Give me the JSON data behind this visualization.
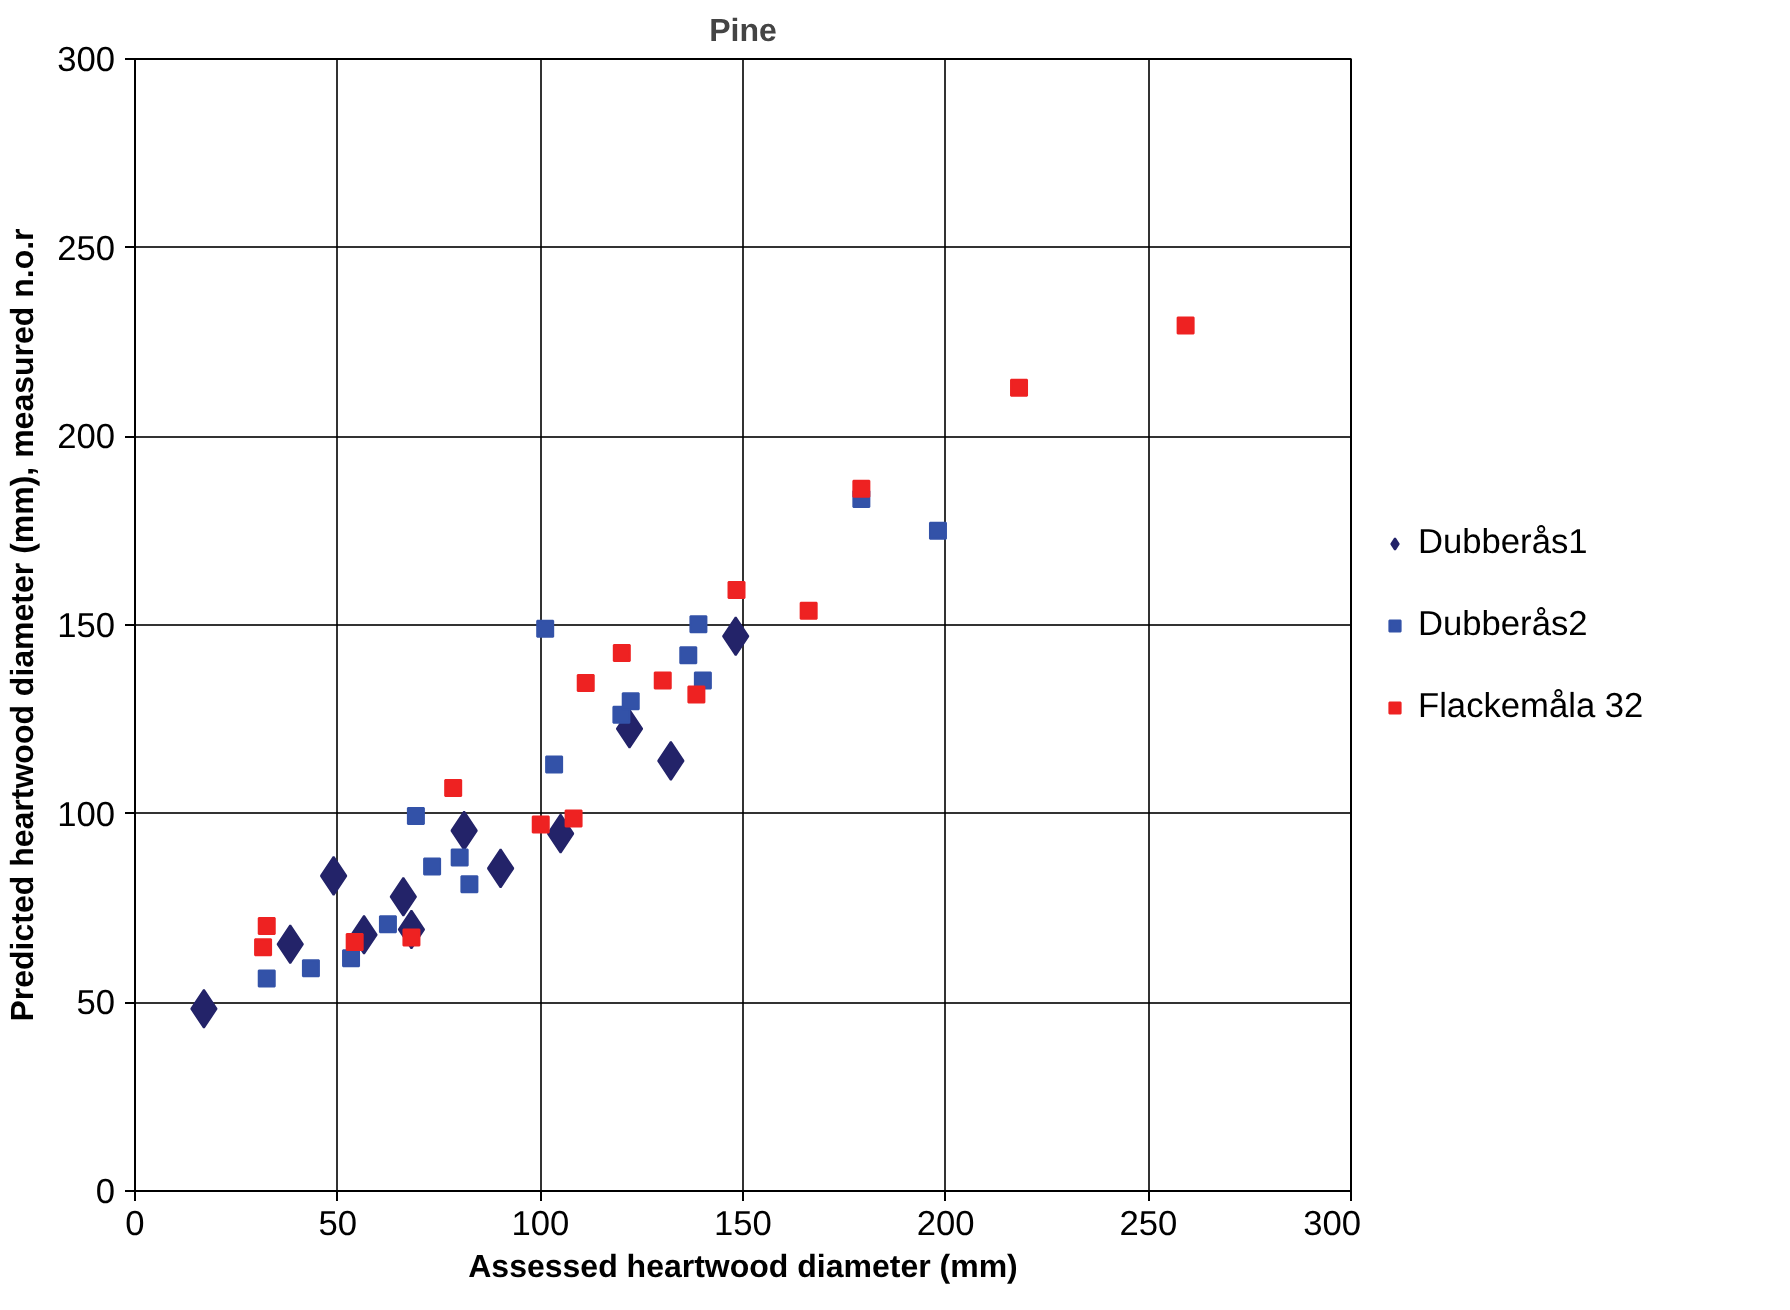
{
  "chart_data": {
    "type": "scatter",
    "title": "Pine",
    "xlabel": "Assessed heartwood diameter (mm)",
    "ylabel": "Predicted heartwood diameter (mm), measured n.o.r",
    "xlim": [
      0,
      300
    ],
    "ylim": [
      0,
      300
    ],
    "xticks": [
      0,
      50,
      100,
      150,
      200,
      250,
      300
    ],
    "yticks": [
      0,
      50,
      100,
      150,
      200,
      250,
      300
    ],
    "grid": true,
    "legend": "right",
    "series": [
      {
        "name": "Dubberås1",
        "color": "#232369",
        "marker": "diamond",
        "x": [
          17,
          38.3,
          49,
          56.5,
          66.2,
          68.2,
          81.2,
          90.2,
          105,
          122,
          132.2,
          148.2
        ],
        "values": [
          48.3,
          65.4,
          83.5,
          67.9,
          78,
          69.3,
          95.5,
          85.5,
          94.7,
          122.5,
          114,
          147
        ]
      },
      {
        "name": "Dubberås2",
        "color": "#3352a8",
        "marker": "square",
        "x": [
          32.5,
          43.4,
          53.3,
          62.4,
          69.3,
          73.3,
          80.1,
          82.5,
          101.2,
          103.4,
          120,
          122.3,
          136.5,
          139,
          140.1,
          179.2,
          198.1
        ],
        "values": [
          56.3,
          59,
          61.7,
          70.7,
          99.4,
          86,
          88.4,
          81.3,
          149,
          113,
          126.2,
          129.8,
          142,
          150.2,
          135.3,
          183.4,
          175
        ]
      },
      {
        "name": "Flackemåla 32",
        "color": "#ee2222",
        "marker": "square",
        "x": [
          32.5,
          31.6,
          54.2,
          68.2,
          78.5,
          100.1,
          108.2,
          111.2,
          120.1,
          130.2,
          138.5,
          148.4,
          166.2,
          179.2,
          218.1,
          259.2
        ],
        "values": [
          70.2,
          64.6,
          66,
          67.2,
          106.8,
          97.1,
          98.7,
          134.6,
          142.6,
          135.3,
          131.6,
          159.3,
          153.8,
          186.1,
          212.9,
          229.4
        ]
      }
    ]
  }
}
